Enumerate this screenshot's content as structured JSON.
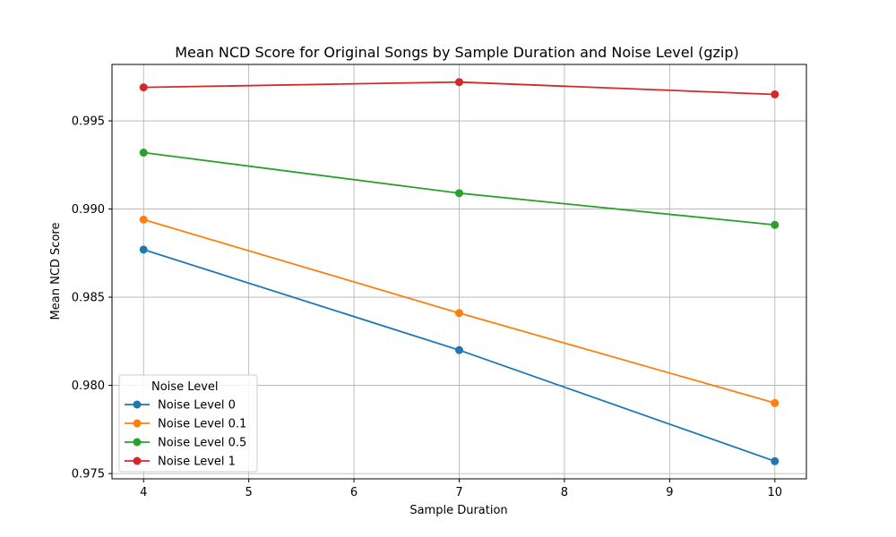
{
  "chart_data": {
    "type": "line",
    "title": "Mean NCD Score for Original Songs by Sample Duration and Noise Level (gzip)",
    "xlabel": "Sample Duration",
    "ylabel": "Mean NCD Score",
    "xlim": [
      3.7,
      10.3
    ],
    "ylim": [
      0.9747,
      0.9982
    ],
    "xticks": [
      4,
      5,
      6,
      7,
      8,
      9,
      10
    ],
    "xtick_labels": [
      "4",
      "5",
      "6",
      "7",
      "8",
      "9",
      "10"
    ],
    "yticks": [
      0.975,
      0.98,
      0.985,
      0.99,
      0.995
    ],
    "ytick_labels": [
      "0.975",
      "0.980",
      "0.985",
      "0.990",
      "0.995"
    ],
    "grid": true,
    "x": [
      4,
      7,
      10
    ],
    "series": [
      {
        "name": "Noise Level 0",
        "color": "#1f77b4",
        "values": [
          0.9877,
          0.982,
          0.9757
        ]
      },
      {
        "name": "Noise Level 0.1",
        "color": "#ff7f0e",
        "values": [
          0.9894,
          0.9841,
          0.979
        ]
      },
      {
        "name": "Noise Level 0.5",
        "color": "#2ca02c",
        "values": [
          0.9932,
          0.9909,
          0.9891
        ]
      },
      {
        "name": "Noise Level 1",
        "color": "#d62728",
        "values": [
          0.9969,
          0.9972,
          0.9965
        ]
      }
    ],
    "legend": {
      "title": "Noise Level",
      "position": "lower-left"
    }
  }
}
